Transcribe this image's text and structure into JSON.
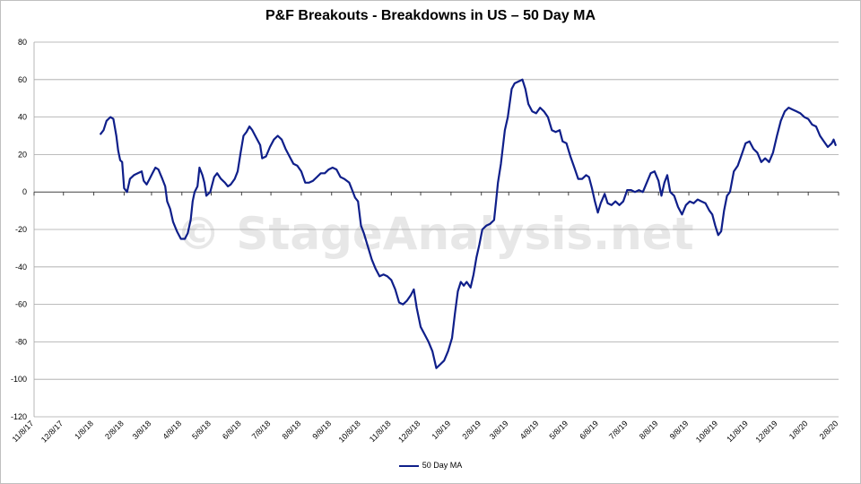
{
  "chart_data": {
    "type": "line",
    "title": "P&F Breakouts - Breakdowns in US – 50 Day MA",
    "watermark": "© StageAnalysis.net",
    "xlabel": "",
    "ylabel": "",
    "ylim": [
      -120,
      80
    ],
    "yticks": [
      80,
      60,
      40,
      20,
      0,
      -20,
      -40,
      -60,
      -80,
      -100,
      -120
    ],
    "xlim": [
      "2017-11-08",
      "2020-02-08"
    ],
    "xtick_labels": [
      "11/8/17",
      "12/8/17",
      "1/8/18",
      "2/8/18",
      "3/8/18",
      "4/8/18",
      "5/8/18",
      "6/8/18",
      "7/8/18",
      "8/8/18",
      "9/8/18",
      "10/8/18",
      "11/8/18",
      "12/8/18",
      "1/8/19",
      "2/8/19",
      "3/8/19",
      "4/8/19",
      "5/8/19",
      "6/8/19",
      "7/8/19",
      "8/8/19",
      "9/8/19",
      "10/8/19",
      "11/8/19",
      "12/8/19",
      "1/8/20",
      "2/8/20"
    ],
    "grid": "horizontal",
    "legend_position": "bottom",
    "series": [
      {
        "name": "50 Day MA",
        "color": "#0f1f8a",
        "points": [
          [
            "2018-01-15",
            31
          ],
          [
            "2018-01-18",
            33
          ],
          [
            "2018-01-21",
            38
          ],
          [
            "2018-01-25",
            40
          ],
          [
            "2018-01-28",
            39
          ],
          [
            "2018-01-31",
            30
          ],
          [
            "2018-02-02",
            22
          ],
          [
            "2018-02-04",
            17
          ],
          [
            "2018-02-06",
            16
          ],
          [
            "2018-02-08",
            2
          ],
          [
            "2018-02-11",
            0
          ],
          [
            "2018-02-14",
            7
          ],
          [
            "2018-02-18",
            9
          ],
          [
            "2018-02-22",
            10
          ],
          [
            "2018-02-26",
            11
          ],
          [
            "2018-02-28",
            6
          ],
          [
            "2018-03-03",
            4
          ],
          [
            "2018-03-06",
            7
          ],
          [
            "2018-03-09",
            10
          ],
          [
            "2018-03-12",
            13
          ],
          [
            "2018-03-15",
            12
          ],
          [
            "2018-03-19",
            7
          ],
          [
            "2018-03-22",
            3
          ],
          [
            "2018-03-24",
            -5
          ],
          [
            "2018-03-27",
            -9
          ],
          [
            "2018-03-30",
            -16
          ],
          [
            "2018-04-03",
            -21
          ],
          [
            "2018-04-07",
            -25
          ],
          [
            "2018-04-11",
            -25
          ],
          [
            "2018-04-14",
            -22
          ],
          [
            "2018-04-17",
            -15
          ],
          [
            "2018-04-19",
            -5
          ],
          [
            "2018-04-21",
            0
          ],
          [
            "2018-04-24",
            3
          ],
          [
            "2018-04-26",
            13
          ],
          [
            "2018-04-29",
            9
          ],
          [
            "2018-05-01",
            5
          ],
          [
            "2018-05-03",
            -2
          ],
          [
            "2018-05-07",
            0
          ],
          [
            "2018-05-11",
            8
          ],
          [
            "2018-05-14",
            10
          ],
          [
            "2018-05-18",
            7
          ],
          [
            "2018-05-22",
            5
          ],
          [
            "2018-05-25",
            3
          ],
          [
            "2018-05-28",
            4
          ],
          [
            "2018-06-01",
            7
          ],
          [
            "2018-06-04",
            11
          ],
          [
            "2018-06-07",
            21
          ],
          [
            "2018-06-10",
            30
          ],
          [
            "2018-06-13",
            32
          ],
          [
            "2018-06-16",
            35
          ],
          [
            "2018-06-19",
            33
          ],
          [
            "2018-06-23",
            29
          ],
          [
            "2018-06-27",
            25
          ],
          [
            "2018-06-29",
            18
          ],
          [
            "2018-07-03",
            19
          ],
          [
            "2018-07-07",
            24
          ],
          [
            "2018-07-11",
            28
          ],
          [
            "2018-07-15",
            30
          ],
          [
            "2018-07-19",
            28
          ],
          [
            "2018-07-23",
            23
          ],
          [
            "2018-07-27",
            19
          ],
          [
            "2018-07-31",
            15
          ],
          [
            "2018-08-04",
            14
          ],
          [
            "2018-08-08",
            11
          ],
          [
            "2018-08-12",
            5
          ],
          [
            "2018-08-16",
            5
          ],
          [
            "2018-08-20",
            6
          ],
          [
            "2018-08-24",
            8
          ],
          [
            "2018-08-28",
            10
          ],
          [
            "2018-09-01",
            10
          ],
          [
            "2018-09-05",
            12
          ],
          [
            "2018-09-09",
            13
          ],
          [
            "2018-09-13",
            12
          ],
          [
            "2018-09-17",
            8
          ],
          [
            "2018-09-21",
            7
          ],
          [
            "2018-09-26",
            5
          ],
          [
            "2018-09-29",
            1
          ],
          [
            "2018-10-02",
            -3
          ],
          [
            "2018-10-05",
            -5
          ],
          [
            "2018-10-08",
            -18
          ],
          [
            "2018-10-11",
            -22
          ],
          [
            "2018-10-15",
            -29
          ],
          [
            "2018-10-19",
            -36
          ],
          [
            "2018-10-23",
            -41
          ],
          [
            "2018-10-27",
            -45
          ],
          [
            "2018-10-31",
            -44
          ],
          [
            "2018-11-04",
            -45
          ],
          [
            "2018-11-08",
            -47
          ],
          [
            "2018-11-12",
            -52
          ],
          [
            "2018-11-16",
            -59
          ],
          [
            "2018-11-20",
            -60
          ],
          [
            "2018-11-24",
            -58
          ],
          [
            "2018-11-28",
            -55
          ],
          [
            "2018-12-01",
            -52
          ],
          [
            "2018-12-04",
            -62
          ],
          [
            "2018-12-08",
            -72
          ],
          [
            "2018-12-12",
            -76
          ],
          [
            "2018-12-16",
            -80
          ],
          [
            "2018-12-20",
            -85
          ],
          [
            "2018-12-24",
            -94
          ],
          [
            "2018-12-28",
            -92
          ],
          [
            "2019-01-01",
            -90
          ],
          [
            "2019-01-05",
            -85
          ],
          [
            "2019-01-09",
            -78
          ],
          [
            "2019-01-12",
            -65
          ],
          [
            "2019-01-15",
            -53
          ],
          [
            "2019-01-18",
            -48
          ],
          [
            "2019-01-21",
            -50
          ],
          [
            "2019-01-24",
            -48
          ],
          [
            "2019-01-28",
            -51
          ],
          [
            "2019-01-31",
            -44
          ],
          [
            "2019-02-03",
            -35
          ],
          [
            "2019-02-06",
            -28
          ],
          [
            "2019-02-09",
            -20
          ],
          [
            "2019-02-13",
            -18
          ],
          [
            "2019-02-17",
            -17
          ],
          [
            "2019-02-21",
            -15
          ],
          [
            "2019-02-23",
            -5
          ],
          [
            "2019-02-25",
            5
          ],
          [
            "2019-02-28",
            15
          ],
          [
            "2019-03-04",
            33
          ],
          [
            "2019-03-07",
            40
          ],
          [
            "2019-03-11",
            55
          ],
          [
            "2019-03-14",
            58
          ],
          [
            "2019-03-18",
            59
          ],
          [
            "2019-03-22",
            60
          ],
          [
            "2019-03-25",
            55
          ],
          [
            "2019-03-28",
            47
          ],
          [
            "2019-04-01",
            43
          ],
          [
            "2019-04-05",
            42
          ],
          [
            "2019-04-09",
            45
          ],
          [
            "2019-04-13",
            43
          ],
          [
            "2019-04-17",
            40
          ],
          [
            "2019-04-21",
            33
          ],
          [
            "2019-04-25",
            32
          ],
          [
            "2019-04-29",
            33
          ],
          [
            "2019-05-02",
            27
          ],
          [
            "2019-05-06",
            26
          ],
          [
            "2019-05-10",
            19
          ],
          [
            "2019-05-14",
            13
          ],
          [
            "2019-05-18",
            7
          ],
          [
            "2019-05-22",
            7
          ],
          [
            "2019-05-26",
            9
          ],
          [
            "2019-05-29",
            8
          ],
          [
            "2019-06-01",
            2
          ],
          [
            "2019-06-04",
            -5
          ],
          [
            "2019-06-07",
            -11
          ],
          [
            "2019-06-10",
            -6
          ],
          [
            "2019-06-14",
            -1
          ],
          [
            "2019-06-17",
            -6
          ],
          [
            "2019-06-21",
            -7
          ],
          [
            "2019-06-25",
            -5
          ],
          [
            "2019-06-29",
            -7
          ],
          [
            "2019-07-03",
            -5
          ],
          [
            "2019-07-07",
            1
          ],
          [
            "2019-07-11",
            1
          ],
          [
            "2019-07-15",
            0
          ],
          [
            "2019-07-19",
            1
          ],
          [
            "2019-07-23",
            0
          ],
          [
            "2019-07-27",
            5
          ],
          [
            "2019-07-31",
            10
          ],
          [
            "2019-08-04",
            11
          ],
          [
            "2019-08-08",
            6
          ],
          [
            "2019-08-11",
            -2
          ],
          [
            "2019-08-14",
            5
          ],
          [
            "2019-08-17",
            9
          ],
          [
            "2019-08-20",
            0
          ],
          [
            "2019-08-24",
            -2
          ],
          [
            "2019-08-28",
            -8
          ],
          [
            "2019-09-01",
            -12
          ],
          [
            "2019-09-05",
            -7
          ],
          [
            "2019-09-09",
            -5
          ],
          [
            "2019-09-13",
            -6
          ],
          [
            "2019-09-17",
            -4
          ],
          [
            "2019-09-21",
            -5
          ],
          [
            "2019-09-25",
            -6
          ],
          [
            "2019-09-29",
            -10
          ],
          [
            "2019-10-02",
            -12
          ],
          [
            "2019-10-05",
            -18
          ],
          [
            "2019-10-08",
            -23
          ],
          [
            "2019-10-11",
            -21
          ],
          [
            "2019-10-14",
            -10
          ],
          [
            "2019-10-17",
            -2
          ],
          [
            "2019-10-20",
            0
          ],
          [
            "2019-10-24",
            11
          ],
          [
            "2019-10-28",
            14
          ],
          [
            "2019-11-01",
            20
          ],
          [
            "2019-11-05",
            26
          ],
          [
            "2019-11-09",
            27
          ],
          [
            "2019-11-13",
            23
          ],
          [
            "2019-11-17",
            21
          ],
          [
            "2019-11-21",
            16
          ],
          [
            "2019-11-25",
            18
          ],
          [
            "2019-11-29",
            16
          ],
          [
            "2019-12-03",
            21
          ],
          [
            "2019-12-07",
            30
          ],
          [
            "2019-12-11",
            38
          ],
          [
            "2019-12-15",
            43
          ],
          [
            "2019-12-19",
            45
          ],
          [
            "2019-12-23",
            44
          ],
          [
            "2019-12-27",
            43
          ],
          [
            "2019-12-31",
            42
          ],
          [
            "2020-01-04",
            40
          ],
          [
            "2020-01-08",
            39
          ],
          [
            "2020-01-12",
            36
          ],
          [
            "2020-01-16",
            35
          ],
          [
            "2020-01-20",
            30
          ],
          [
            "2020-01-24",
            27
          ],
          [
            "2020-01-28",
            24
          ],
          [
            "2020-02-01",
            26
          ],
          [
            "2020-02-03",
            28
          ],
          [
            "2020-02-05",
            25
          ]
        ]
      }
    ]
  }
}
